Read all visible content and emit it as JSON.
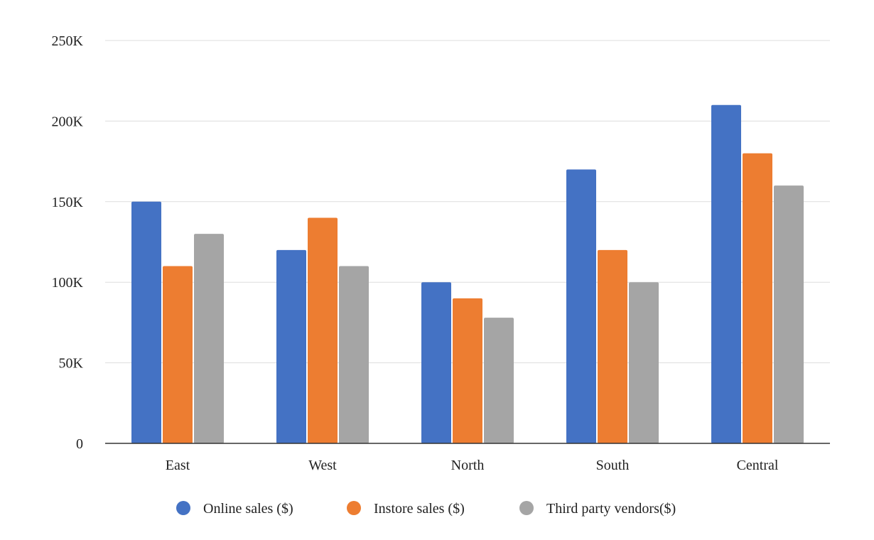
{
  "chart_data": {
    "type": "bar",
    "categories": [
      "East",
      "West",
      "North",
      "South",
      "Central"
    ],
    "series": [
      {
        "name": "Online sales ($)",
        "color": "#4472c4",
        "values": [
          150000,
          120000,
          100000,
          170000,
          210000
        ]
      },
      {
        "name": "Instore sales ($)",
        "color": "#ed7d31",
        "values": [
          110000,
          140000,
          90000,
          120000,
          180000
        ]
      },
      {
        "name": "Third party vendors($)",
        "color": "#a5a5a5",
        "values": [
          130000,
          110000,
          78000,
          100000,
          160000
        ]
      }
    ],
    "yticks": [
      0,
      50000,
      100000,
      150000,
      200000,
      250000
    ],
    "ytick_labels": [
      "0",
      "50K",
      "100K",
      "150K",
      "200K",
      "250K"
    ],
    "ylim": [
      0,
      250000
    ],
    "grid": true,
    "legend": "bottom",
    "title": "",
    "xlabel": "",
    "ylabel": ""
  }
}
